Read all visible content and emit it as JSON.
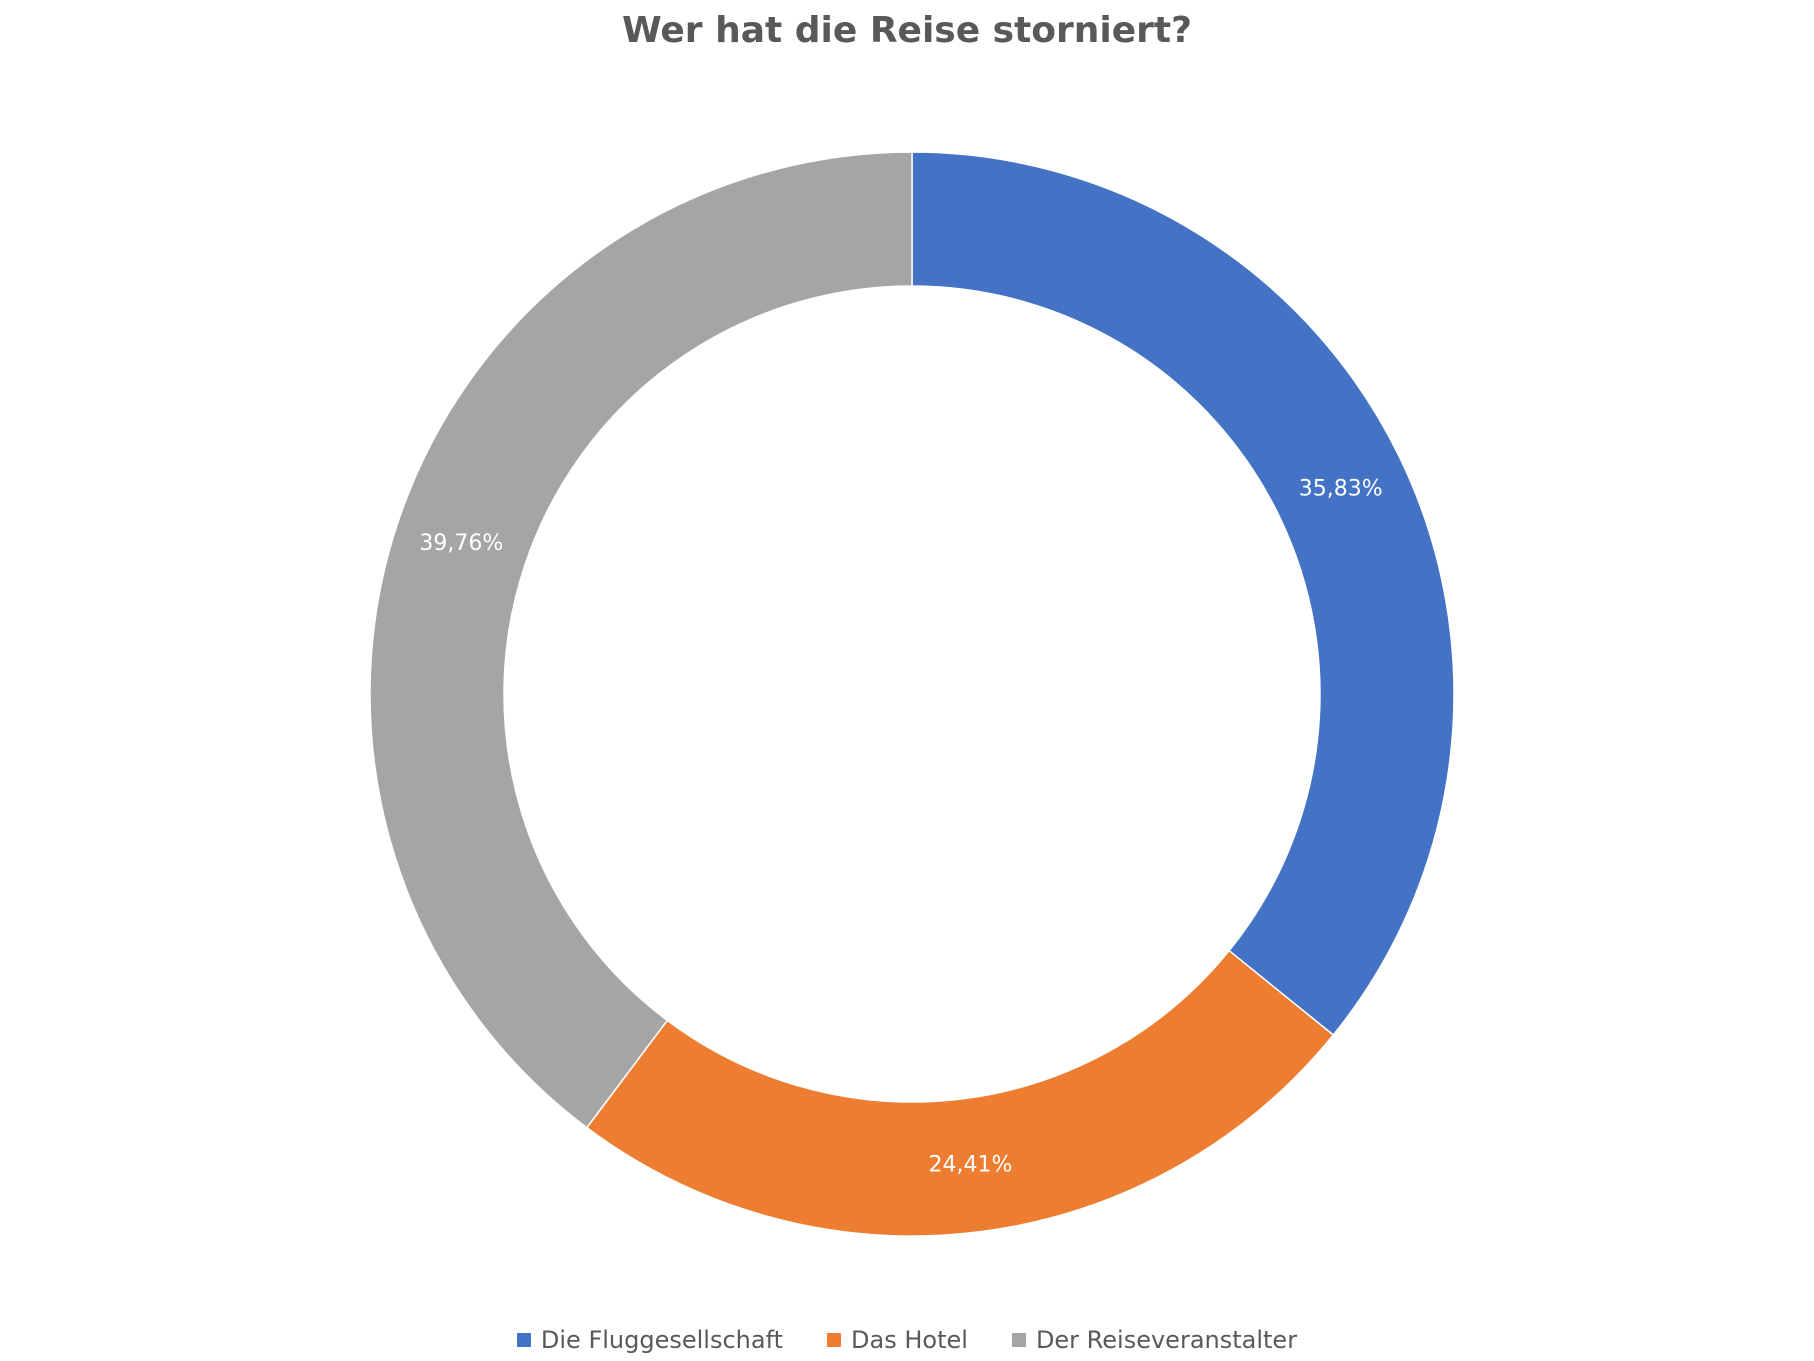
{
  "chart_data": {
    "type": "pie",
    "subtype": "donut",
    "title": "Wer hat die Reise storniert?",
    "categories": [
      "Die Fluggesellschaft",
      "Das Hotel",
      "Der Reiseveranstalter"
    ],
    "values": [
      35.83,
      24.41,
      39.76
    ],
    "labels": [
      "35,83%",
      "24,41%",
      "39,76%"
    ],
    "colors": [
      "#4472C4",
      "#ED7D31",
      "#A5A5A5"
    ],
    "legend_position": "bottom",
    "start_angle": "12 o'clock, clockwise"
  }
}
